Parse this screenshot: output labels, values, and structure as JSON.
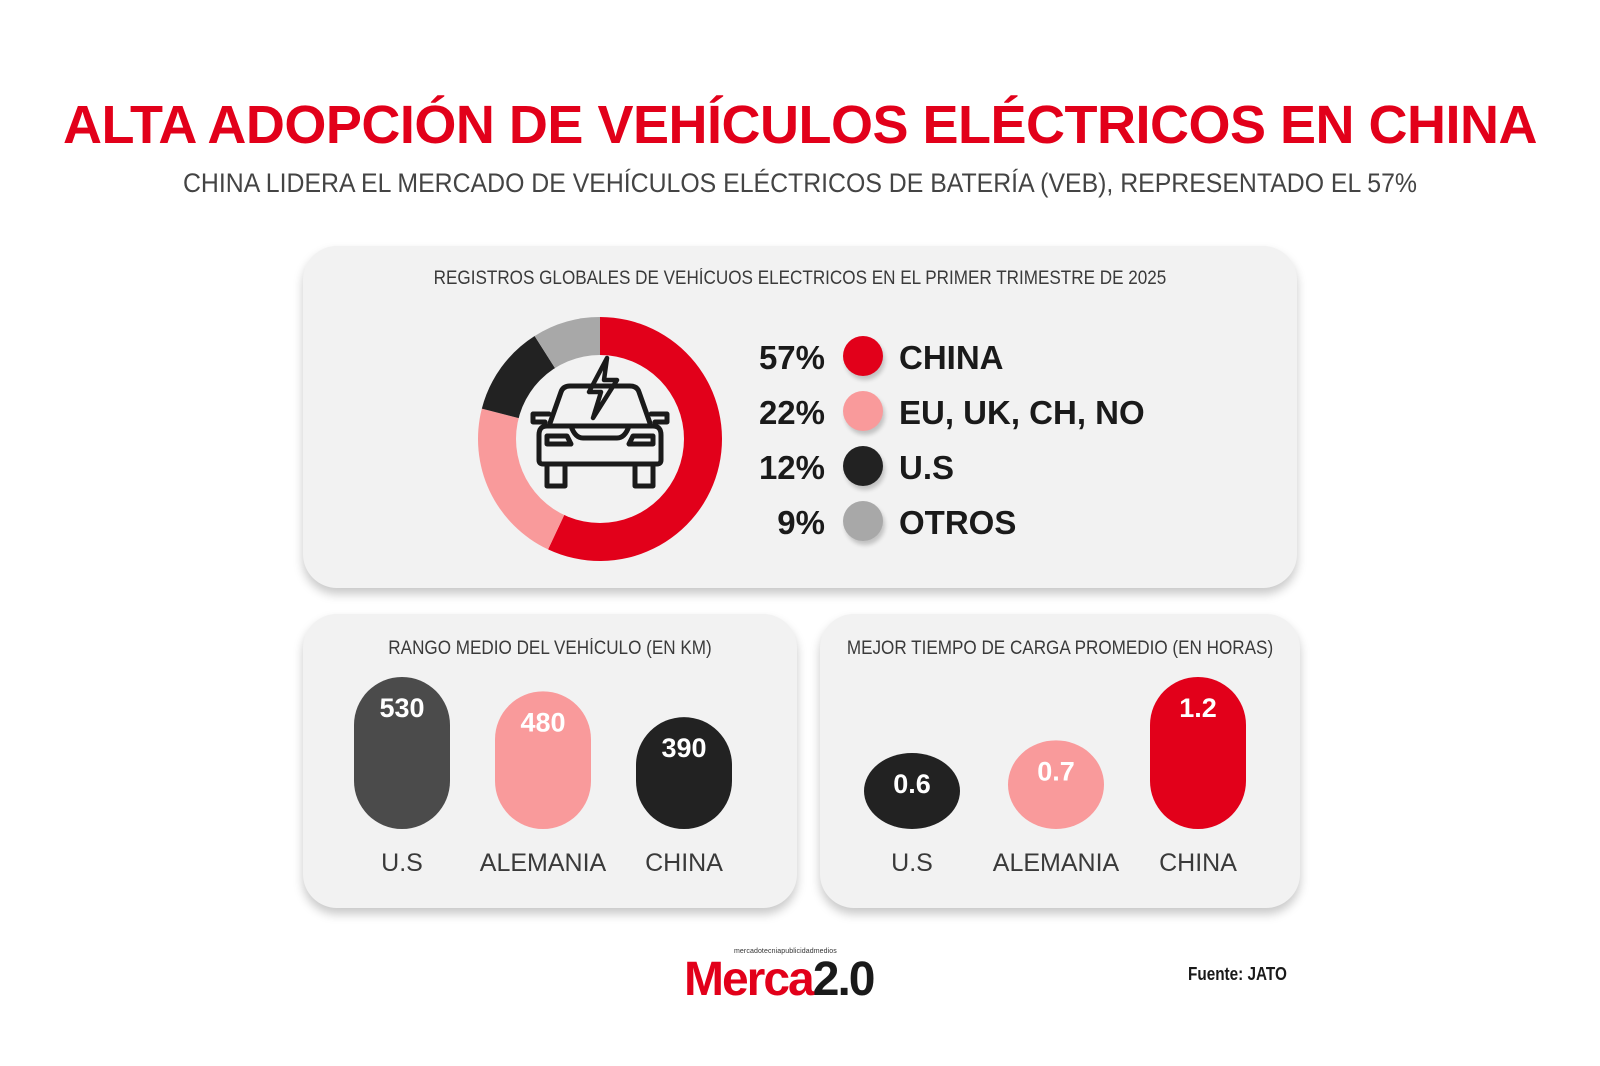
{
  "header": {
    "title": "ALTA ADOPCIÓN DE VEHÍCULOS ELÉCTRICOS EN CHINA",
    "subtitle": "CHINA LIDERA EL MERCADO DE VEHÍCULOS ELÉCTRICOS DE BATERÍA (VEB),  REPRESENTADO EL 57%"
  },
  "colors": {
    "red": "#e2001a",
    "pink": "#f99a9b",
    "black": "#222222",
    "gray": "#a8a8a8",
    "darkgray": "#4b4b4b"
  },
  "icons": {
    "donut_center": "electric-car-icon"
  },
  "chart_data": [
    {
      "type": "pie",
      "title": "REGISTROS GLOBALES DE VEHÍCUOS ELECTRICOS EN EL PRIMER TRIMESTRE DE 2025",
      "categories": [
        "CHINA",
        "EU, UK, CH, NO",
        "U.S",
        "OTROS"
      ],
      "values": [
        57,
        22,
        12,
        9
      ],
      "labels": [
        "57%",
        "22%",
        "12%",
        "9%"
      ],
      "colors": [
        "#e2001a",
        "#f99a9b",
        "#222222",
        "#a8a8a8"
      ],
      "legend": "right"
    },
    {
      "type": "bar",
      "title": "RANGO MEDIO DEL VEHÍCULO (EN KM)",
      "categories": [
        "U.S",
        "ALEMANIA",
        "CHINA"
      ],
      "values": [
        530,
        480,
        390
      ],
      "labels": [
        "530",
        "480",
        "390"
      ],
      "colors": [
        "#4b4b4b",
        "#f99a9b",
        "#222222"
      ]
    },
    {
      "type": "bar",
      "title": "MEJOR TIEMPO DE CARGA PROMEDIO (EN HORAS)",
      "categories": [
        "U.S",
        "ALEMANIA",
        "CHINA"
      ],
      "values": [
        0.6,
        0.7,
        1.2
      ],
      "labels": [
        "0.6",
        "0.7",
        "1.2"
      ],
      "colors": [
        "#222222",
        "#f99a9b",
        "#e2001a"
      ]
    }
  ],
  "footer": {
    "logo_small": "mercadotecniapublicidadmedios",
    "logo_main_red": "Merca",
    "logo_main_black": "2.0",
    "source": "Fuente: JATO"
  }
}
